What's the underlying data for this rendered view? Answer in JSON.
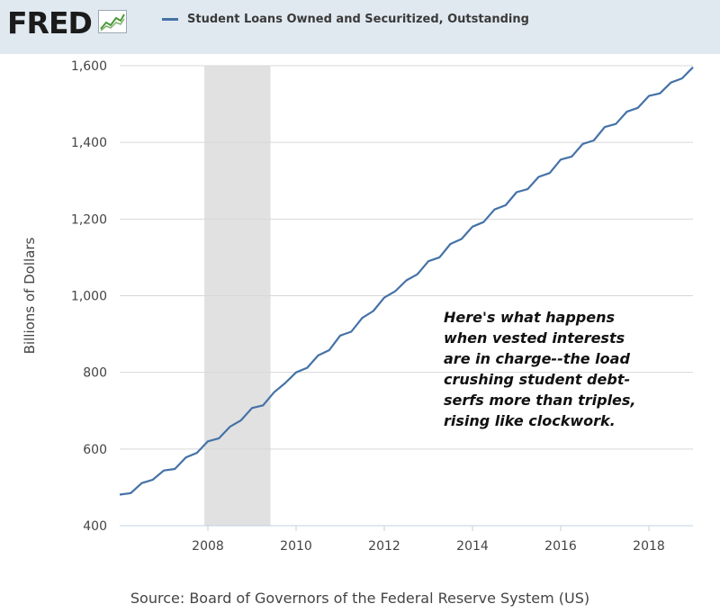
{
  "header": {
    "logo_text": "FRED",
    "legend_label": "Student Loans Owned and Securitized, Outstanding"
  },
  "colors": {
    "series": "#4572a7",
    "recession": "#e1e1e1",
    "header_bg": "#e1e9f0"
  },
  "icons": [
    "fred-logo-chart-icon"
  ],
  "annotation": "Here's what happens\nwhen vested interests\nare in charge--the load\ncrushing student debt-\nserfs more than triples,\nrising like clockwork.",
  "source": "Source: Board of Governors of the Federal Reserve System (US)",
  "chart_data": {
    "type": "line",
    "title": "",
    "xlabel": "",
    "ylabel": "Billions of Dollars",
    "xlim": [
      2006.0,
      2019.0
    ],
    "ylim": [
      400,
      1600
    ],
    "yticks": [
      400,
      600,
      800,
      1000,
      1200,
      1400,
      1600
    ],
    "ytick_labels": [
      "400",
      "600",
      "800",
      "1,000",
      "1,200",
      "1,400",
      "1,600"
    ],
    "xticks": [
      2008,
      2010,
      2012,
      2014,
      2016,
      2018
    ],
    "xtick_labels": [
      "2008",
      "2010",
      "2012",
      "2014",
      "2016",
      "2018"
    ],
    "grid": "horizontal",
    "recession": [
      2007.92,
      2009.42
    ],
    "series": [
      {
        "name": "Student Loans Owned and Securitized, Outstanding",
        "x": [
          2006.0,
          2006.25,
          2006.5,
          2006.75,
          2007.0,
          2007.25,
          2007.5,
          2007.75,
          2008.0,
          2008.25,
          2008.5,
          2008.75,
          2009.0,
          2009.25,
          2009.5,
          2009.75,
          2010.0,
          2010.25,
          2010.5,
          2010.75,
          2011.0,
          2011.25,
          2011.5,
          2011.75,
          2012.0,
          2012.25,
          2012.5,
          2012.75,
          2013.0,
          2013.25,
          2013.5,
          2013.75,
          2014.0,
          2014.25,
          2014.5,
          2014.75,
          2015.0,
          2015.25,
          2015.5,
          2015.75,
          2016.0,
          2016.25,
          2016.5,
          2016.75,
          2017.0,
          2017.25,
          2017.5,
          2017.75,
          2018.0,
          2018.25,
          2018.5,
          2018.75,
          2019.0
        ],
        "values": [
          481,
          485,
          511,
          520,
          544,
          548,
          578,
          590,
          620,
          628,
          658,
          675,
          707,
          714,
          748,
          772,
          800,
          812,
          844,
          858,
          896,
          906,
          942,
          960,
          995,
          1012,
          1040,
          1056,
          1090,
          1100,
          1135,
          1148,
          1180,
          1192,
          1225,
          1236,
          1270,
          1278,
          1310,
          1320,
          1355,
          1363,
          1396,
          1405,
          1440,
          1448,
          1480,
          1490,
          1521,
          1528,
          1556,
          1567,
          1596
        ]
      }
    ]
  }
}
